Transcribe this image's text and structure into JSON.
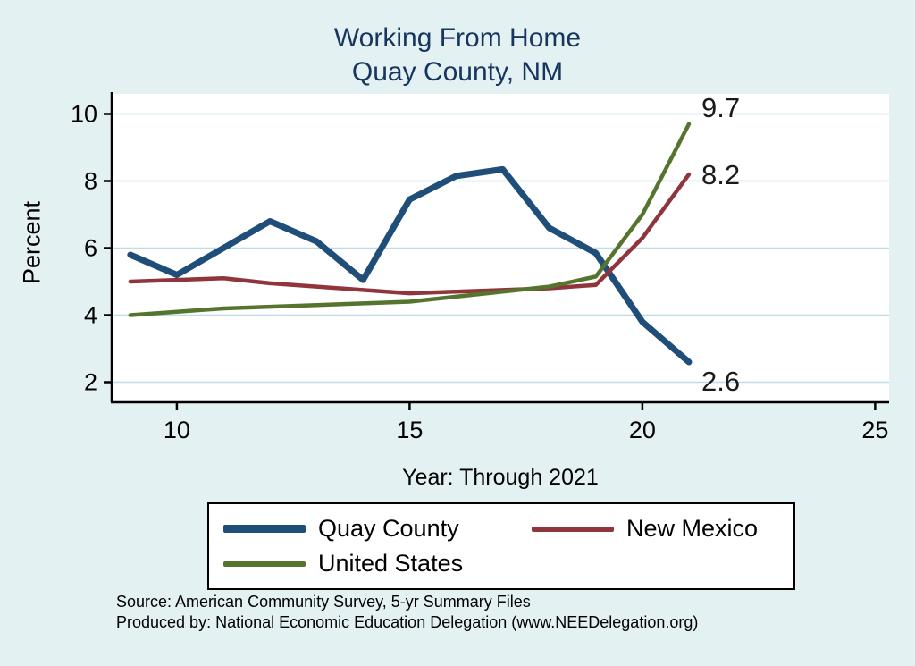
{
  "title": {
    "line1": "Working From Home",
    "line2": "Quay County, NM"
  },
  "chart_data": {
    "type": "line",
    "x": [
      9,
      10,
      11,
      12,
      13,
      14,
      15,
      16,
      17,
      18,
      19,
      20,
      21
    ],
    "series": [
      {
        "name": "Quay County",
        "color": "#1f4e79",
        "thickness": 7,
        "values": [
          5.8,
          5.2,
          6.0,
          6.8,
          6.2,
          5.05,
          7.45,
          8.15,
          8.35,
          6.6,
          5.85,
          3.8,
          2.6
        ],
        "end_label": "2.6"
      },
      {
        "name": "New Mexico",
        "color": "#90353b",
        "thickness": 4.5,
        "values": [
          5.0,
          5.05,
          5.1,
          4.95,
          4.85,
          4.75,
          4.65,
          4.7,
          4.75,
          4.8,
          4.9,
          6.3,
          8.2
        ],
        "end_label": "8.2"
      },
      {
        "name": "United States",
        "color": "#55752f",
        "thickness": 4.5,
        "values": [
          4.0,
          4.1,
          4.2,
          4.25,
          4.3,
          4.35,
          4.4,
          4.55,
          4.7,
          4.85,
          5.15,
          7.0,
          9.7
        ],
        "end_label": "9.7"
      }
    ],
    "title": "Working From Home Quay County, NM",
    "xlabel": "Year: Through 2021",
    "ylabel": "Percent",
    "xlim": [
      8.6,
      25.3
    ],
    "ylim": [
      1.4,
      10.6
    ],
    "xticks": [
      10,
      15,
      20,
      25
    ],
    "yticks": [
      2,
      4,
      6,
      8,
      10
    ],
    "grid": true,
    "legend_position": "bottom"
  },
  "colors": {
    "background": "#e4f1f3",
    "plot_background": "#ffffff",
    "gridline": "#bfdce4",
    "axis": "#000000",
    "title": "#17365d",
    "end_label": "#1a1a1a"
  },
  "footer": {
    "source": "Source: American Community Survey, 5-yr Summary Files",
    "produced_by": "Produced by: National Economic Education Delegation (www.NEEDelegation.org)"
  }
}
